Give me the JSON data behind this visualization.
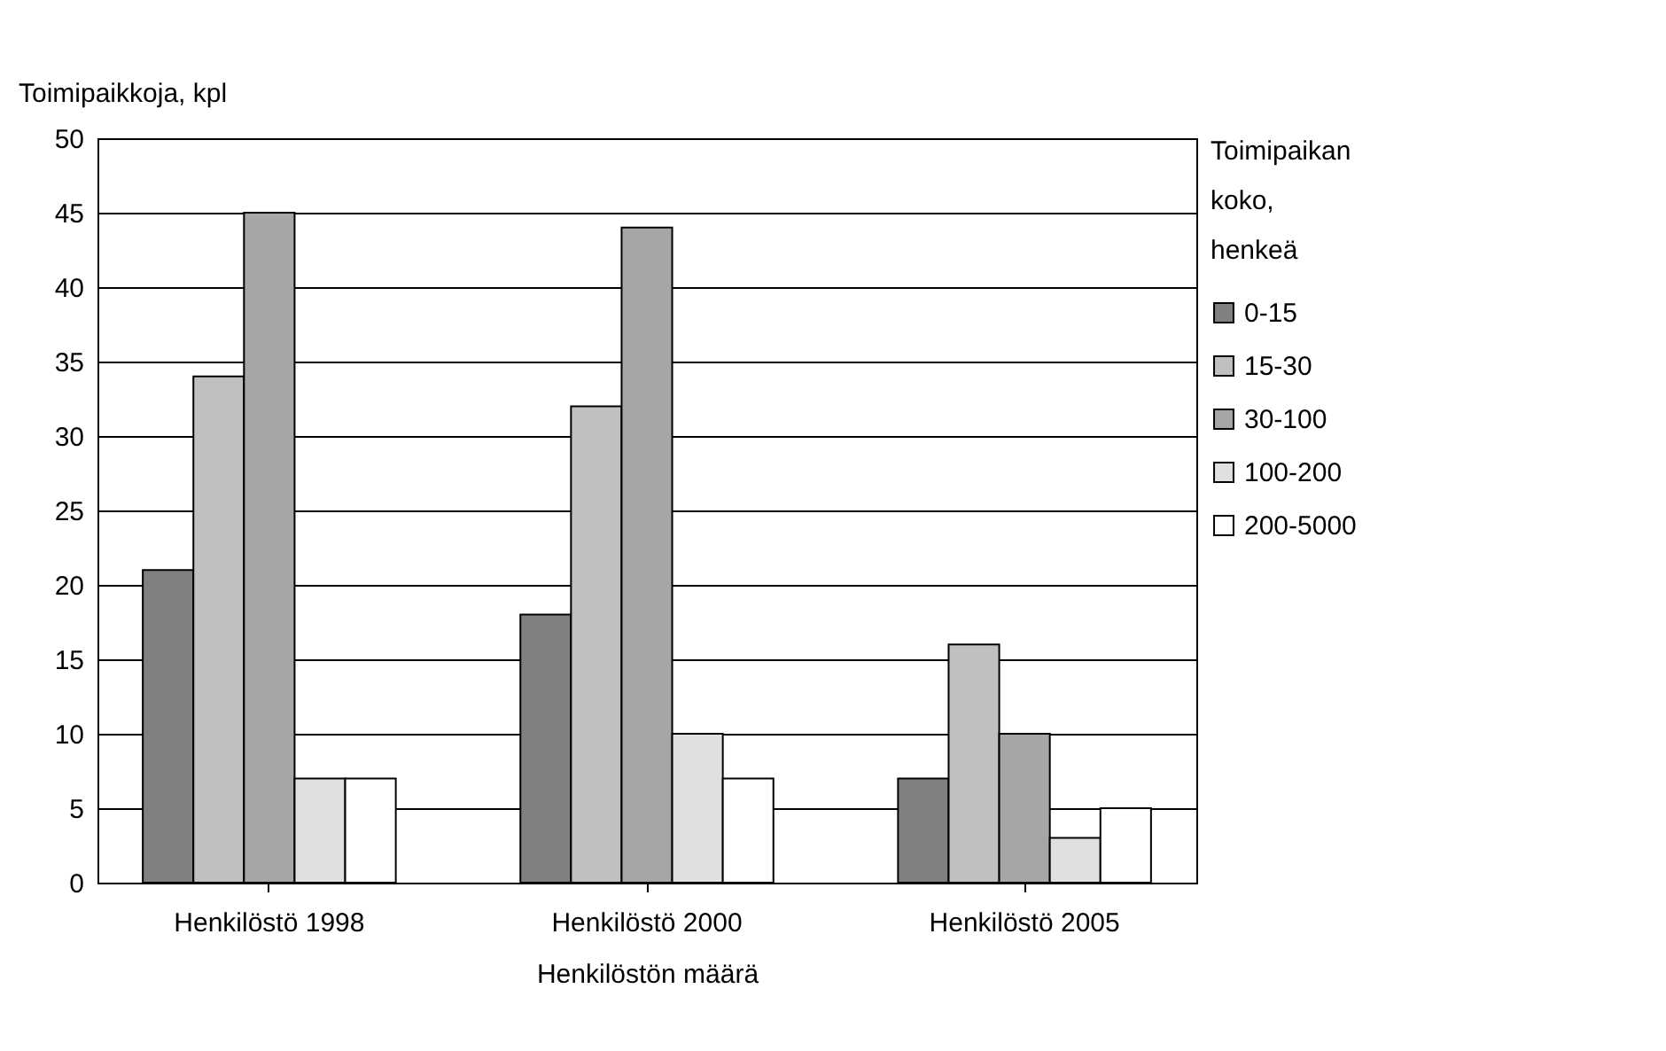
{
  "chart_data": {
    "type": "bar",
    "xlabel": "Henkilöstön määrä",
    "ylabel": "Toimipaikkoja, kpl",
    "legend_title": "Toimipaikan koko, henkeä",
    "categories": [
      "Henkilöstö 1998",
      "Henkilöstö 2000",
      "Henkilöstö 2005"
    ],
    "series": [
      {
        "name": "0-15",
        "color": "#808080",
        "values": [
          21,
          18,
          7
        ]
      },
      {
        "name": "15-30",
        "color": "#c0c0c0",
        "values": [
          34,
          32,
          16
        ]
      },
      {
        "name": "30-100",
        "color": "#a6a6a6",
        "values": [
          45,
          44,
          10
        ]
      },
      {
        "name": "100-200",
        "color": "#e0e0e0",
        "values": [
          7,
          10,
          3
        ]
      },
      {
        "name": "200-5000",
        "color": "#ffffff",
        "values": [
          7,
          7,
          5
        ]
      }
    ],
    "ylim": [
      0,
      50
    ],
    "yticks": [
      0,
      5,
      10,
      15,
      20,
      25,
      30,
      35,
      40,
      45,
      50
    ],
    "grid": "y",
    "legend": "right"
  }
}
